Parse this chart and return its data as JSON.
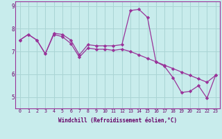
{
  "xlabel": "Windchill (Refroidissement éolien,°C)",
  "bg_color": "#c8ecec",
  "grid_color": "#aad4d4",
  "line_color": "#993399",
  "marker_color": "#993399",
  "x_series1": [
    0,
    1,
    2,
    3,
    4,
    5,
    6,
    7,
    8,
    9,
    10,
    11,
    12,
    13,
    14,
    15,
    16,
    17,
    18,
    19,
    20,
    21,
    22,
    23
  ],
  "y_series1": [
    7.5,
    7.75,
    7.5,
    6.9,
    7.8,
    7.75,
    7.5,
    6.85,
    7.3,
    7.25,
    7.25,
    7.25,
    7.3,
    8.8,
    8.85,
    8.5,
    6.55,
    6.35,
    5.85,
    5.2,
    5.25,
    5.5,
    4.95,
    5.95
  ],
  "x_series2": [
    0,
    1,
    2,
    3,
    4,
    5,
    6,
    7,
    8,
    9,
    10,
    11,
    12,
    13,
    14,
    15,
    16,
    17,
    18,
    19,
    20,
    21,
    22,
    23
  ],
  "y_series2": [
    7.5,
    7.75,
    7.5,
    6.9,
    7.75,
    7.65,
    7.35,
    6.75,
    7.15,
    7.1,
    7.1,
    7.05,
    7.1,
    7.0,
    6.85,
    6.7,
    6.55,
    6.4,
    6.25,
    6.1,
    5.95,
    5.8,
    5.65,
    5.95
  ],
  "ylim": [
    4.5,
    9.2
  ],
  "xlim": [
    -0.5,
    23.5
  ],
  "yticks": [
    5,
    6,
    7,
    8,
    9
  ],
  "xticks": [
    0,
    1,
    2,
    3,
    4,
    5,
    6,
    7,
    8,
    9,
    10,
    11,
    12,
    13,
    14,
    15,
    16,
    17,
    18,
    19,
    20,
    21,
    22,
    23
  ],
  "xlabel_fontsize": 5.5,
  "xtick_fontsize": 4.8,
  "ytick_fontsize": 5.5,
  "linewidth": 0.9,
  "markersize": 2.2
}
